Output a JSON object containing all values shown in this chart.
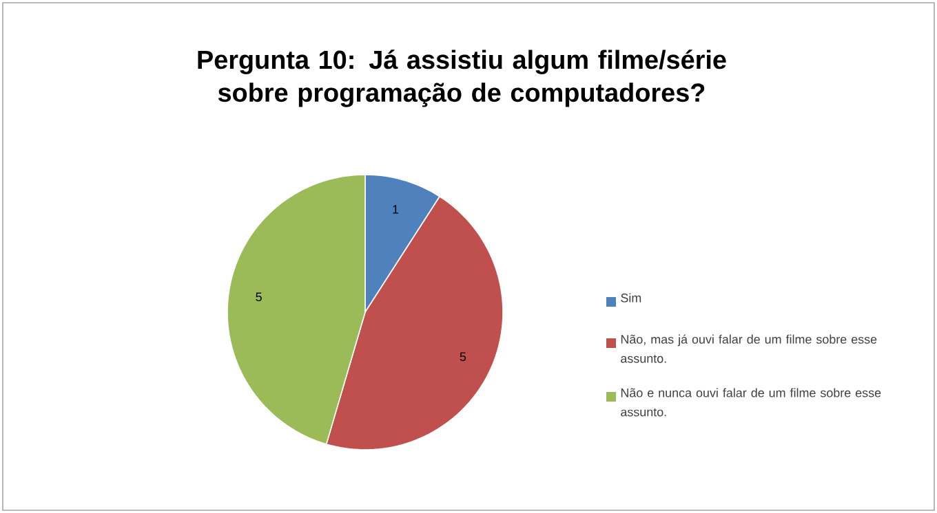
{
  "chart_data": {
    "type": "pie",
    "title": "Pergunta 10: Já assistiu algum filme/série sobre programação de computadores?",
    "categories": [
      "Sim",
      "Não, mas já ouvi falar de um filme sobre esse assunto.",
      "Não e nunca ouvi falar de um filme sobre esse assunto."
    ],
    "values": [
      1,
      5,
      5
    ],
    "colors": [
      "#4f81bd",
      "#c0504d",
      "#9bbb59"
    ],
    "data_labels": true,
    "legend": "right"
  }
}
